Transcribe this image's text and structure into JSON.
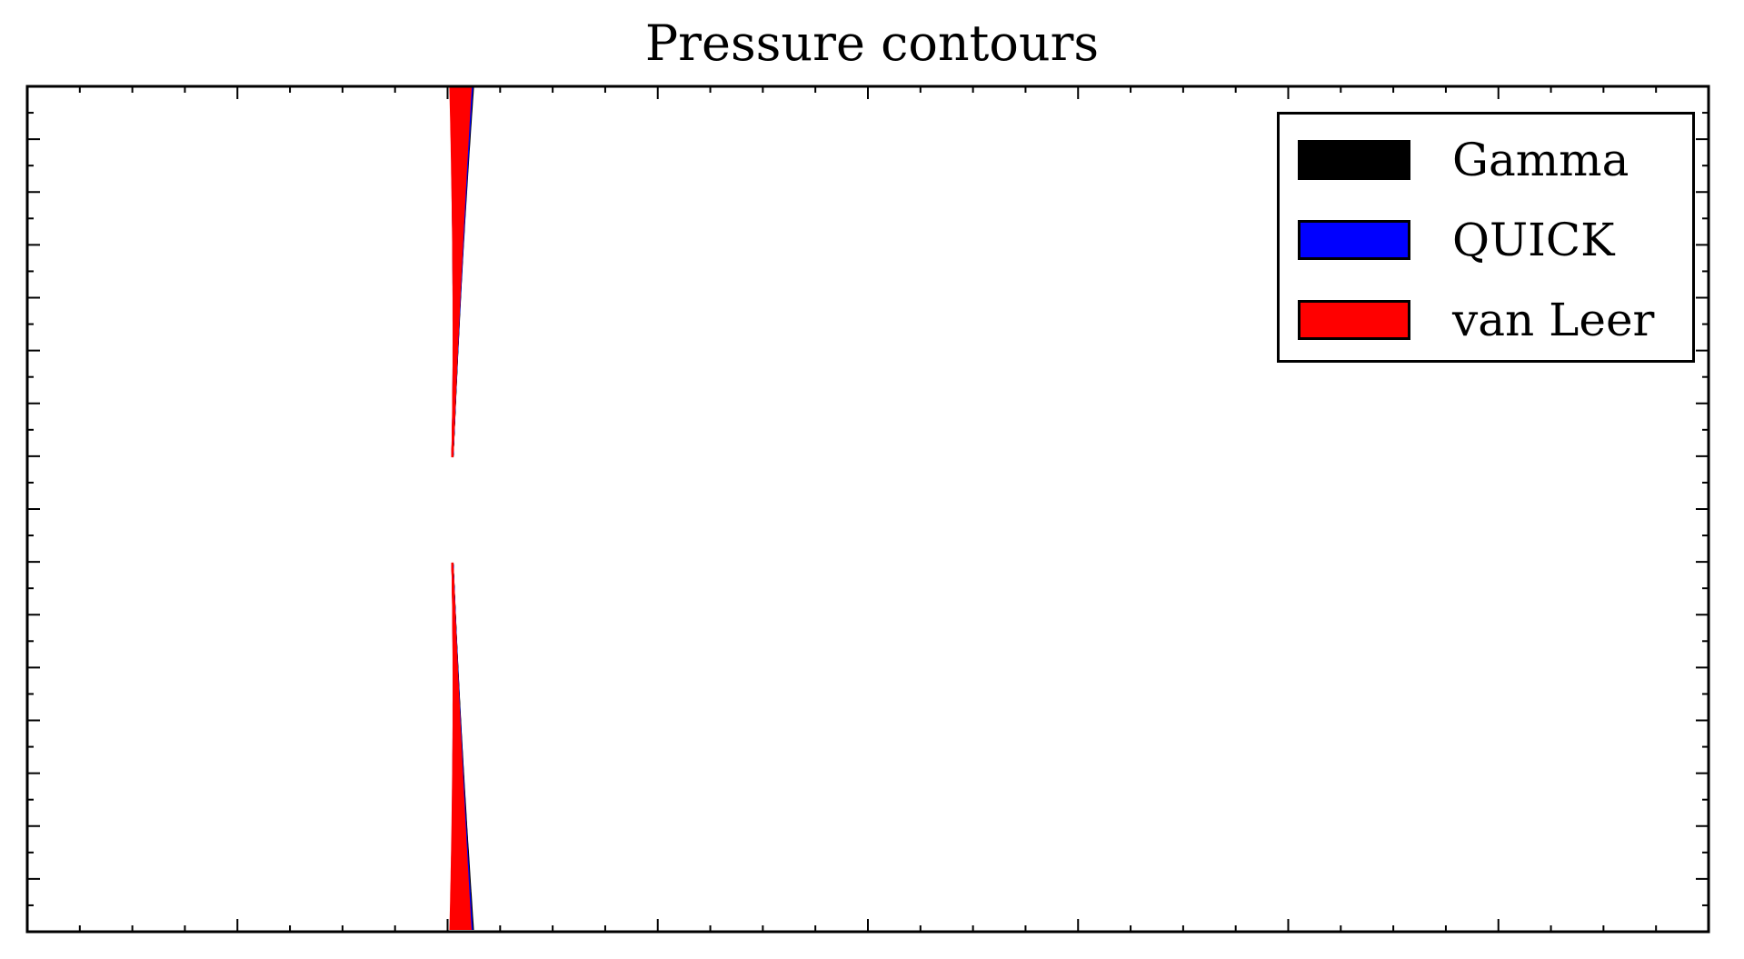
{
  "chart_data": {
    "type": "contour",
    "title": "Pressure contours",
    "xlabel": "",
    "ylabel": "",
    "grid": false,
    "legend_placement": "top-right",
    "series": [
      {
        "name": "Gamma",
        "color": "#000000"
      },
      {
        "name": "QUICK",
        "color": "#0000ff"
      },
      {
        "name": "van Leer",
        "color": "#ff0000"
      }
    ],
    "obstacle": "cylinder",
    "tick_labels_shown": false
  }
}
